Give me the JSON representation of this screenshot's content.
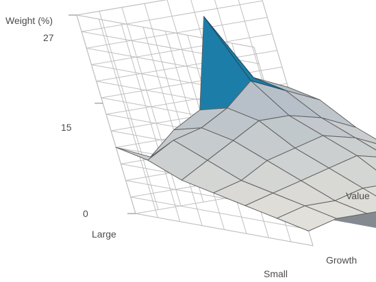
{
  "chart_data": {
    "type": "surface",
    "ylabel": "Weight (%)",
    "zlim": [
      0,
      27
    ],
    "z_ticks": [
      "0",
      "15",
      "27"
    ],
    "size_axis_labels": [
      "Large",
      "Small"
    ],
    "style_axis_labels": [
      "Value",
      "Growth"
    ],
    "grid": true,
    "values": [
      [
        9,
        7,
        10,
        12,
        24,
        15,
        13
      ],
      [
        8,
        10,
        11,
        13,
        16,
        14,
        12
      ],
      [
        6,
        8,
        10,
        12,
        12,
        11,
        9
      ],
      [
        5,
        6,
        8,
        9,
        10,
        9,
        7
      ],
      [
        4,
        5,
        6,
        7,
        8,
        7,
        6
      ],
      [
        3,
        4,
        4,
        5,
        5,
        5,
        4
      ],
      [
        2,
        3,
        3,
        3,
        3,
        3,
        2
      ]
    ],
    "highlight_peak": true
  },
  "colors": {
    "surface_high": "#8a97a3",
    "surface_mid": "#b7c0c8",
    "surface_low": "#efe9df",
    "peak": "#1c7ea8",
    "grid": "#bfbfbf",
    "wall": "#ffffff",
    "shadow": "#6e767c"
  }
}
